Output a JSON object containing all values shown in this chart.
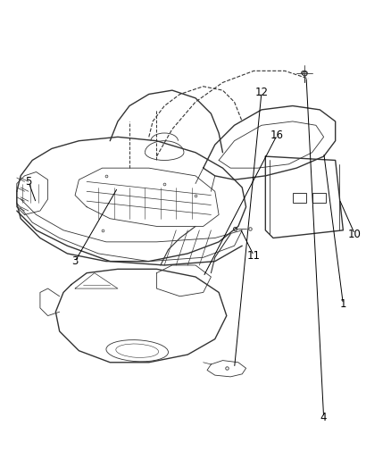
{
  "background_color": "#ffffff",
  "line_color": "#333333",
  "label_color": "#000000",
  "figsize": [
    4.38,
    5.33
  ],
  "dpi": 100
}
